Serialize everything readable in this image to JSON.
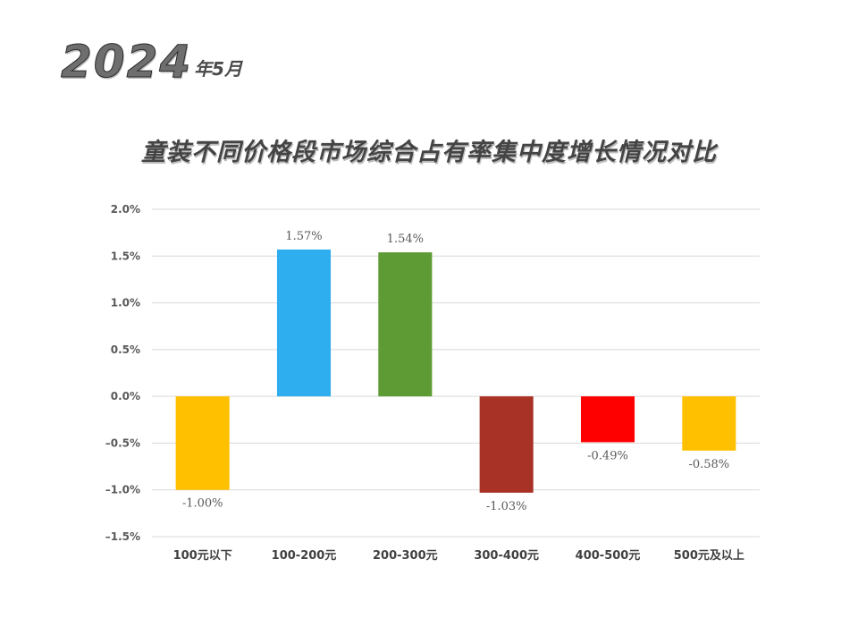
{
  "header": {
    "year": "2024",
    "month_suffix": "年5月"
  },
  "chart_data": {
    "type": "bar",
    "title": "童装不同价格段市场综合占有率集中度增长情况对比",
    "xlabel": "",
    "ylabel": "",
    "categories": [
      "100元以下",
      "100-200元",
      "200-300元",
      "300-400元",
      "400-500元",
      "500元及以上"
    ],
    "values": [
      -1.0,
      1.57,
      1.54,
      -1.03,
      -0.49,
      -0.58
    ],
    "value_labels": [
      "-1.00%",
      "1.57%",
      "1.54%",
      "-1.03%",
      "-0.49%",
      "-0.58%"
    ],
    "colors": [
      "#FFC000",
      "#2EADEF",
      "#5E9B35",
      "#A93226",
      "#FF0000",
      "#FFC000"
    ],
    "ylim": [
      -1.5,
      2.0
    ],
    "yticks": [
      2.0,
      1.5,
      1.0,
      0.5,
      0.0,
      -0.5,
      -1.0,
      -1.5
    ],
    "ytick_labels": [
      "2.0%",
      "1.5%",
      "1.0%",
      "0.5%",
      "0.0%",
      "–0.5%",
      "–1.0%",
      "–1.5%"
    ],
    "grid": true,
    "legend": "none"
  }
}
